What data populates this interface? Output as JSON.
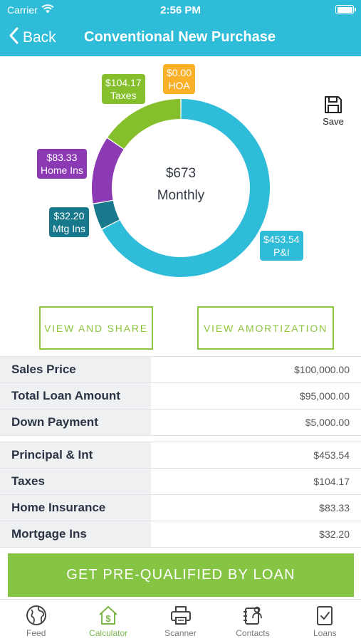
{
  "status": {
    "carrier": "Carrier",
    "time": "2:56 PM"
  },
  "nav": {
    "back_label": "Back",
    "title": "Conventional New Purchase"
  },
  "colors": {
    "header": "#2ebcd9",
    "pi": "#2ebcd9",
    "hoa": "#fbb02a",
    "taxes": "#86bf2c",
    "home_ins": "#8b3ab4",
    "mtg_ins": "#17798b",
    "accent_green": "#86c544"
  },
  "chart": {
    "center_amount": "$673",
    "center_label": "Monthly",
    "segments": [
      {
        "key": "pi",
        "amount": "$453.54",
        "label": "P&I",
        "value": 453.54
      },
      {
        "key": "mtg_ins",
        "amount": "$32.20",
        "label": "Mtg Ins",
        "value": 32.2
      },
      {
        "key": "home_ins",
        "amount": "$83.33",
        "label": "Home Ins",
        "value": 83.33
      },
      {
        "key": "taxes",
        "amount": "$104.17",
        "label": "Taxes",
        "value": 104.17
      },
      {
        "key": "hoa",
        "amount": "$0.00",
        "label": "HOA",
        "value": 0
      }
    ]
  },
  "save": {
    "label": "Save",
    "icon": "floppy-disk-icon"
  },
  "buttons": {
    "view_share": "VIEW AND SHARE",
    "view_amortization": "VIEW AMORTIZATION"
  },
  "loan_table": [
    {
      "label": "Sales Price",
      "value": "$100,000.00"
    },
    {
      "label": "Total Loan Amount",
      "value": "$95,000.00"
    },
    {
      "label": "Down Payment",
      "value": "$5,000.00"
    }
  ],
  "payment_table": [
    {
      "label": "Principal & Int",
      "value": "$453.54"
    },
    {
      "label": "Taxes",
      "value": "$104.17"
    },
    {
      "label": "Home Insurance",
      "value": "$83.33"
    },
    {
      "label": "Mortgage Ins",
      "value": "$32.20"
    }
  ],
  "cta_label": "GET PRE-QUALIFIED BY LOAN",
  "tabs": [
    {
      "label": "Feed",
      "icon": "globe-icon",
      "active": false
    },
    {
      "label": "Calculator",
      "icon": "house-dollar-icon",
      "active": true
    },
    {
      "label": "Scanner",
      "icon": "printer-icon",
      "active": false
    },
    {
      "label": "Contacts",
      "icon": "contacts-icon",
      "active": false
    },
    {
      "label": "Loans",
      "icon": "clipboard-check-icon",
      "active": false
    }
  ]
}
